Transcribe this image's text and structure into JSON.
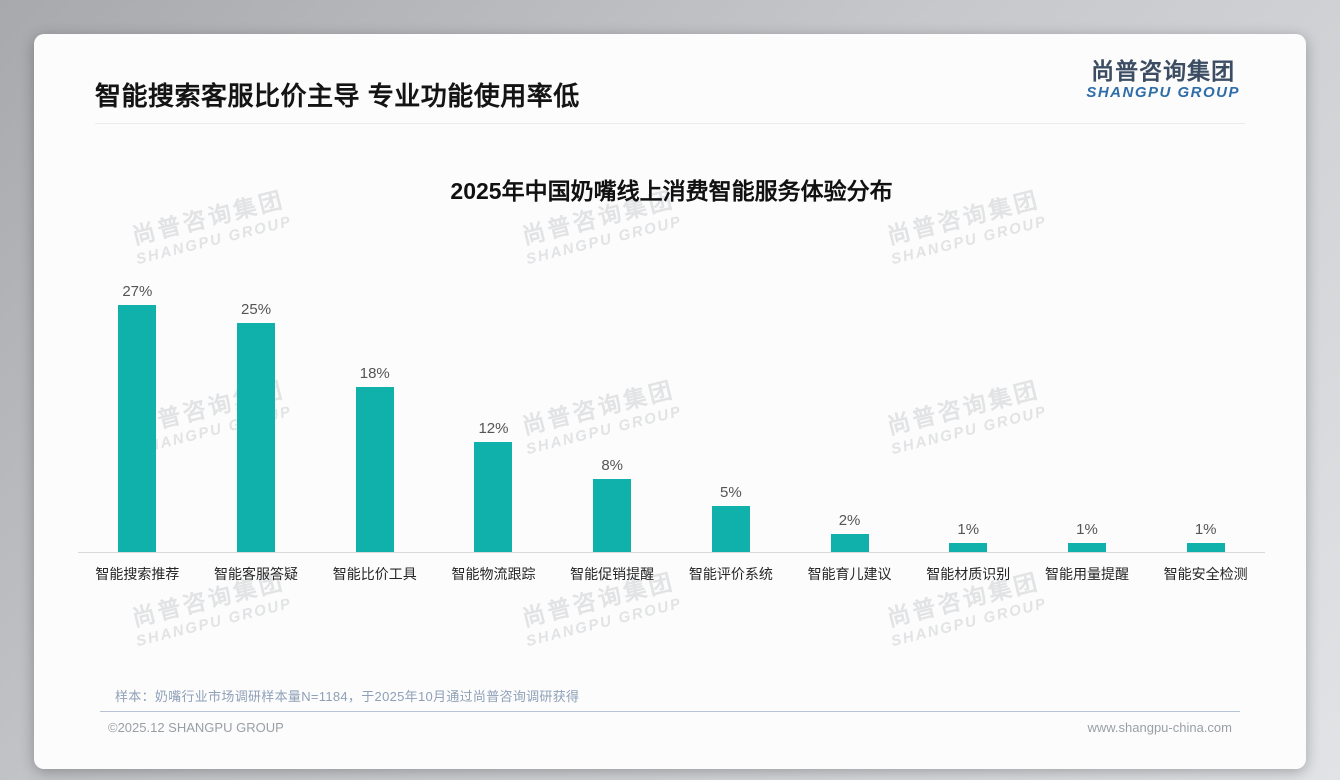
{
  "header": {
    "title": "智能搜索客服比价主导 专业功能使用率低",
    "logo_cn": "尚普咨询集团",
    "logo_en": "SHANGPU GROUP"
  },
  "watermark": {
    "line1": "尚普咨询集团",
    "line2": "SHANGPU GROUP"
  },
  "chart_data": {
    "type": "bar",
    "title": "2025年中国奶嘴线上消费智能服务体验分布",
    "categories": [
      "智能搜索推荐",
      "智能客服答疑",
      "智能比价工具",
      "智能物流跟踪",
      "智能促销提醒",
      "智能评价系统",
      "智能育儿建议",
      "智能材质识别",
      "智能用量提醒",
      "智能安全检测"
    ],
    "values": [
      27,
      25,
      18,
      12,
      8,
      5,
      2,
      1,
      1,
      1
    ],
    "unit": "%",
    "xlabel": "",
    "ylabel": "",
    "ylim": [
      0,
      30
    ],
    "grid": false,
    "legend": "none",
    "value_label_position": "above-bar",
    "bar_color": "#10b1ab"
  },
  "footnote": "样本：奶嘴行业市场调研样本量N=1184，于2025年10月通过尚普咨询调研获得",
  "footer": {
    "left": "©2025.12 SHANGPU GROUP",
    "right": "www.shangpu-china.com"
  },
  "colors": {
    "bar": "#10b1ab",
    "logo_cn": "#3c4d63",
    "logo_en": "#2f6da8",
    "note_text": "#8fa0b8",
    "footer_text": "#9a9fa5",
    "axis_line": "#d9d9d9"
  }
}
